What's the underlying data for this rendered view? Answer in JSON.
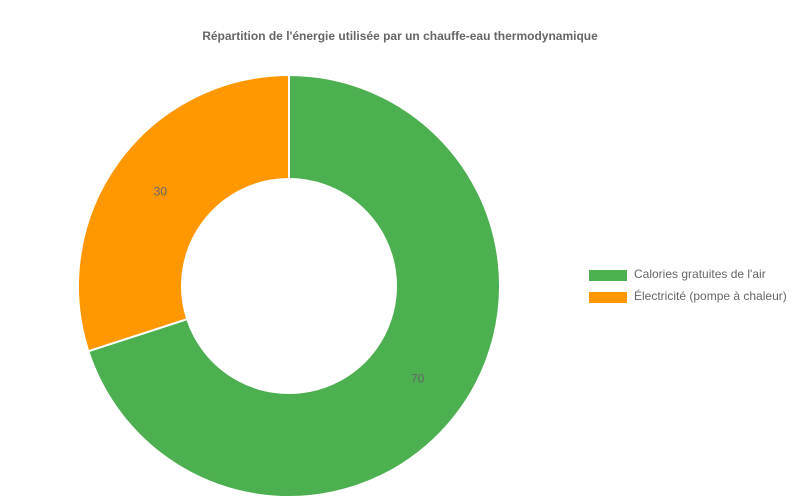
{
  "chart_data": {
    "type": "doughnut",
    "title": "Répartition de l'énergie utilisée par un chauffe-eau thermodynamique",
    "categories": [
      "Calories gratuites de l'air",
      "Électricité (pompe à chaleur)"
    ],
    "values": [
      70,
      30
    ],
    "colors": [
      "#4caf50",
      "#ff9800"
    ],
    "legend": "right"
  }
}
